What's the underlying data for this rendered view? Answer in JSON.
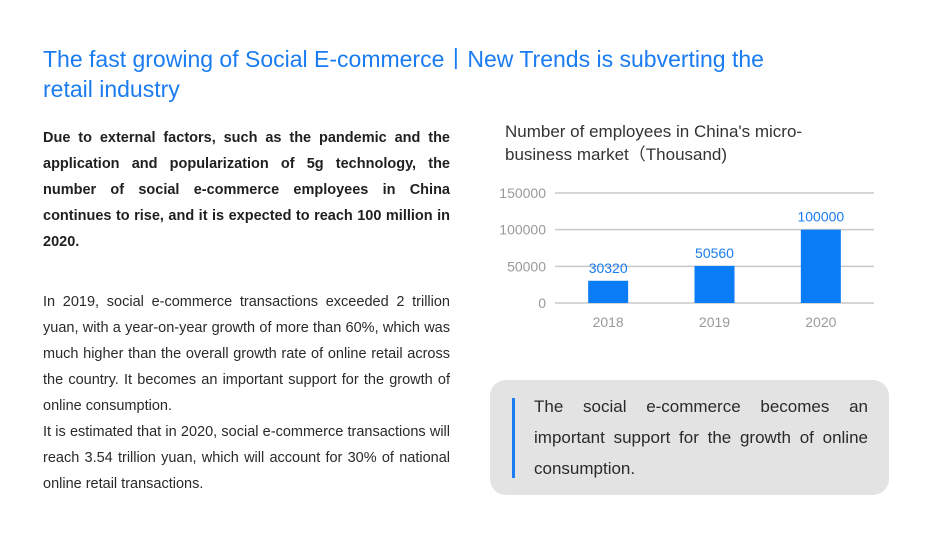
{
  "title": "The fast growing of Social E-commerce丨New Trends is subverting the retail industry",
  "paragraphs": {
    "p1": "Due to external factors, such as the pandemic and the application and popularization of 5g technology, the number of social e-commerce employees in China continues to rise, and it is expected to reach 100 million in 2020.",
    "p2": "In 2019, social e-commerce transactions exceeded 2 trillion yuan, with a year-on-year growth of more than 60%, which was much higher than the overall growth rate of online retail across the country. It becomes an important support for the growth of online consumption.",
    "p3": "It is estimated that in 2020, social e-commerce transactions will reach 3.54 trillion yuan, which will account for 30% of national online retail transactions."
  },
  "chart_data": {
    "type": "bar",
    "title": "Number of employees in China's micro-business market（Thousand)",
    "categories": [
      "2018",
      "2019",
      "2020"
    ],
    "values": [
      30320,
      50560,
      100000
    ],
    "ylim": [
      0,
      150000
    ],
    "yticks": [
      0,
      50000,
      100000,
      150000
    ],
    "grid": true,
    "bar_color": "#0a7cf5",
    "label_color": "#1a7cf0"
  },
  "callout": {
    "text": "The social e-commerce becomes an important support for the growth of online consumption."
  }
}
